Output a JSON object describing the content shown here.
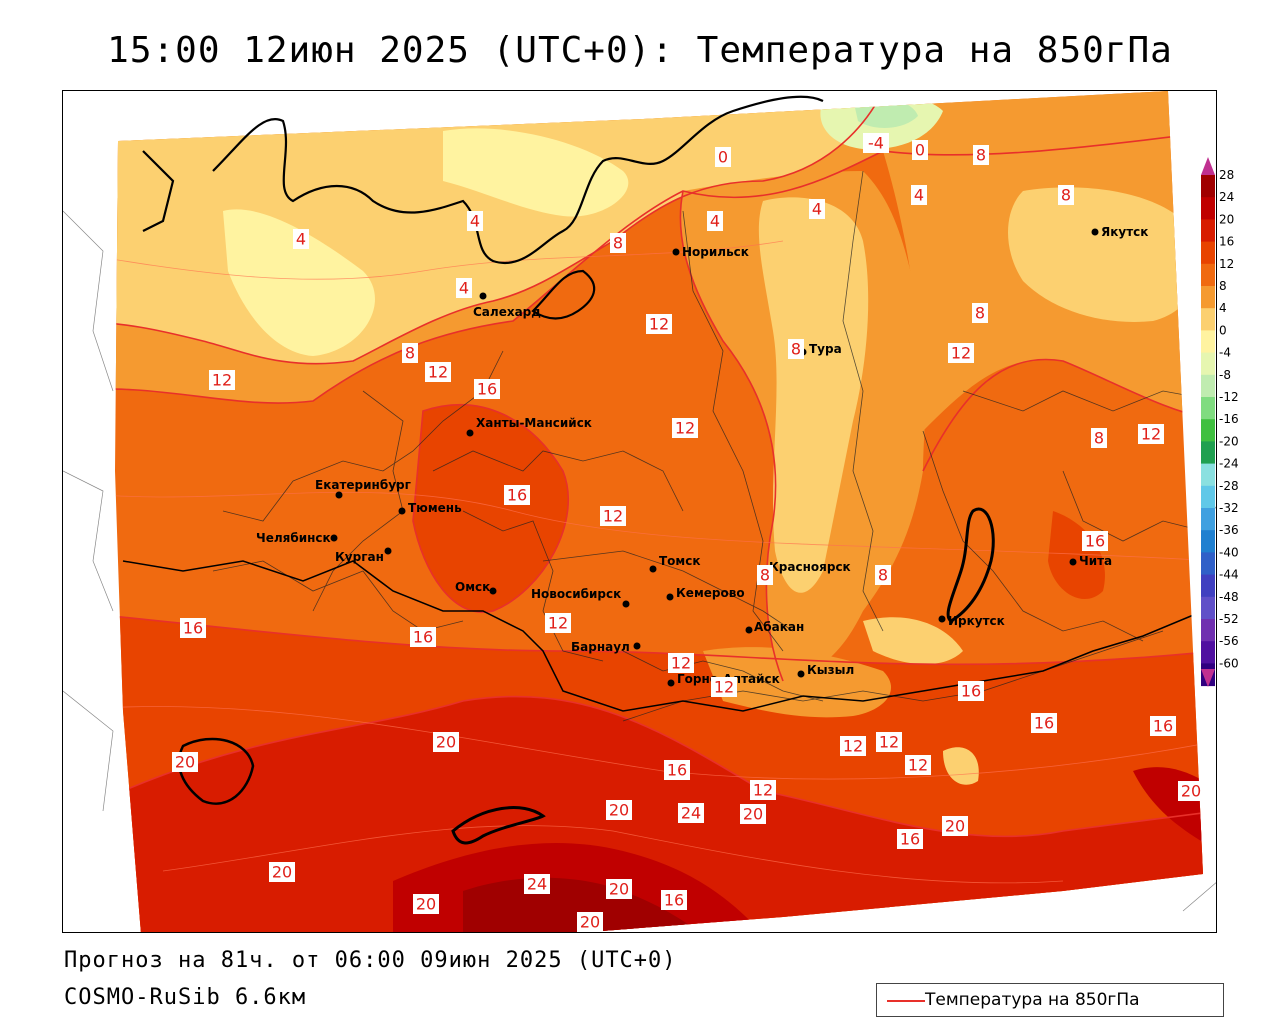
{
  "title": "15:00 12июн 2025 (UTC+0): Температура на 850гПа",
  "footer": {
    "forecast": "Прогноз на 81ч. от 06:00 09июн 2025 (UTC+0)",
    "model": "COSMO-RuSib 6.6км"
  },
  "legend": {
    "label": "Температура на 850гПа",
    "color": "#e8302a"
  },
  "colorbar": {
    "ticks": [
      "28",
      "24",
      "20",
      "16",
      "12",
      "8",
      "4",
      "0",
      "-4",
      "-8",
      "-12",
      "-16",
      "-20",
      "-24",
      "-28",
      "-32",
      "-36",
      "-40",
      "-44",
      "-48",
      "-52",
      "-56",
      "-60"
    ],
    "colors": [
      "#a00000",
      "#c00000",
      "#d81c00",
      "#e84400",
      "#f06a10",
      "#f59a30",
      "#fcd070",
      "#fff3a0",
      "#e6f6b0",
      "#c0ecb0",
      "#80dc80",
      "#40c040",
      "#20a050",
      "#8ae0e0",
      "#60c8e8",
      "#40a0e0",
      "#2080d0",
      "#3060c8",
      "#4040c0",
      "#6050c8",
      "#7030b0",
      "#5010a0",
      "#300080"
    ]
  },
  "cities": [
    {
      "name": "Норильск"
    },
    {
      "name": "Якутск"
    },
    {
      "name": "Салехард"
    },
    {
      "name": "Тура"
    },
    {
      "name": "Ханты-Мансийск"
    },
    {
      "name": "Екатеринбург"
    },
    {
      "name": "Тюмень"
    },
    {
      "name": "Челябинск"
    },
    {
      "name": "Курган"
    },
    {
      "name": "Омск"
    },
    {
      "name": "Новосибирск"
    },
    {
      "name": "Томск"
    },
    {
      "name": "Кемерово"
    },
    {
      "name": "Красноярск"
    },
    {
      "name": "Барнаул"
    },
    {
      "name": "Абакан"
    },
    {
      "name": "Горно-Алтайск"
    },
    {
      "name": "Кызыл"
    },
    {
      "name": "Иркутск"
    },
    {
      "name": "Чита"
    }
  ],
  "isotherm_labels": [
    "0",
    "-4",
    "0",
    "8",
    "4",
    "4",
    "8",
    "4",
    "4",
    "8",
    "8",
    "4",
    "4",
    "12",
    "8",
    "8",
    "12",
    "16",
    "12",
    "12",
    "12",
    "8",
    "12",
    "16",
    "12",
    "16",
    "16",
    "16",
    "12",
    "8",
    "20",
    "8",
    "12",
    "16",
    "12",
    "20",
    "16",
    "12",
    "12",
    "12",
    "16",
    "16",
    "20",
    "24",
    "20",
    "12",
    "20",
    "16",
    "20",
    "20",
    "24",
    "20",
    "16",
    "20",
    "20"
  ]
}
